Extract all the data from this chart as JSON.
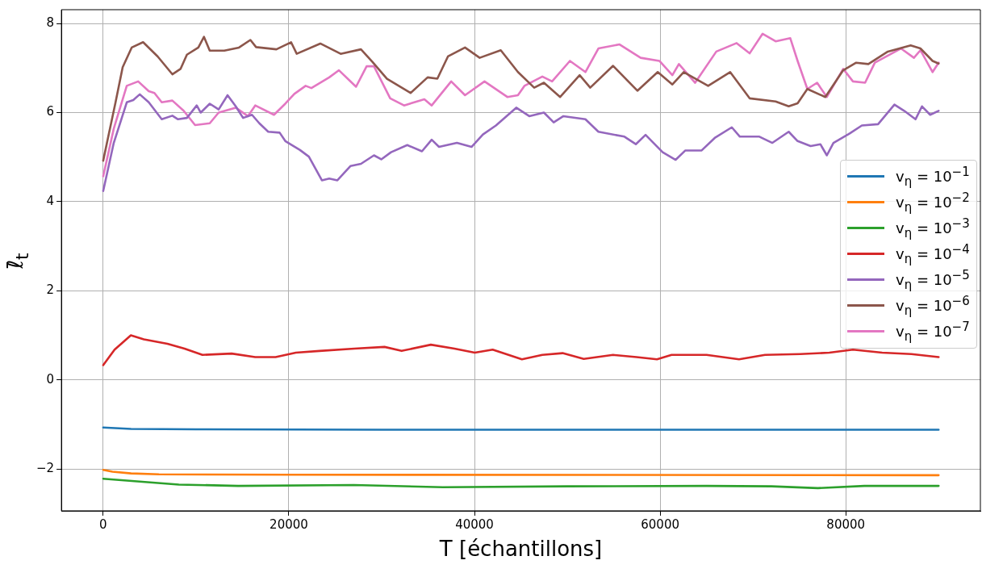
{
  "chart_data": {
    "type": "line",
    "xlabel": "T [échantillons]",
    "ylabel": "ℓ̄$_{t}$",
    "xlim": [
      -4500,
      94500
    ],
    "ylim": [
      -2.94,
      8.31
    ],
    "xticks": [
      0,
      20000,
      40000,
      60000,
      80000
    ],
    "yticks": [
      {
        "value": -2,
        "label": "−2"
      },
      0,
      2,
      4,
      6,
      8
    ],
    "grid": true,
    "legend": "right",
    "marker": "none",
    "line_style": "solid",
    "series": [
      {
        "name": "v$_{η}$ = 10$^{−1}$",
        "color": "#1f77b4",
        "x": [
          0,
          3000,
          10000,
          30000,
          60000,
          90000
        ],
        "values": [
          -1.07,
          -1.1,
          -1.11,
          -1.12,
          -1.12,
          -1.12
        ]
      },
      {
        "name": "v$_{η}$ = 10$^{−2}$",
        "color": "#ff7f0e",
        "x": [
          0,
          1000,
          3000,
          6000,
          20000,
          90000
        ],
        "values": [
          -2.02,
          -2.06,
          -2.1,
          -2.12,
          -2.13,
          -2.14
        ]
      },
      {
        "name": "v$_{η}$ = 10$^{−3}$",
        "color": "#2ca02c",
        "x": [
          0,
          8150,
          14540,
          27000,
          36600,
          50000,
          65000,
          72000,
          77000,
          82000,
          90000
        ],
        "values": [
          -2.22,
          -2.35,
          -2.38,
          -2.36,
          -2.41,
          -2.39,
          -2.38,
          -2.39,
          -2.43,
          -2.38,
          -2.38
        ]
      },
      {
        "name": "v$_{η}$ = 10$^{−4}$",
        "color": "#d62728",
        "x": [
          0,
          1230,
          2980,
          4380,
          6920,
          8760,
          10690,
          13840,
          16380,
          18570,
          20760,
          23300,
          27070,
          30310,
          32150,
          35300,
          37840,
          40030,
          41960,
          45110,
          47310,
          49490,
          51770,
          54930,
          57460,
          59660,
          61230,
          65000,
          68500,
          71300,
          75080,
          78230,
          80770,
          83920,
          87070,
          90000
        ],
        "values": [
          0.33,
          0.68,
          1.0,
          0.91,
          0.81,
          0.7,
          0.56,
          0.59,
          0.51,
          0.51,
          0.61,
          0.65,
          0.7,
          0.74,
          0.65,
          0.79,
          0.7,
          0.61,
          0.68,
          0.46,
          0.56,
          0.6,
          0.47,
          0.56,
          0.51,
          0.46,
          0.56,
          0.56,
          0.46,
          0.56,
          0.58,
          0.61,
          0.68,
          0.61,
          0.58,
          0.51
        ]
      },
      {
        "name": "v$_{η}$ = 10$^{−5}$",
        "color": "#9467bd",
        "x": [
          0,
          1140,
          2540,
          3240,
          3940,
          4910,
          6310,
          7450,
          8060,
          9020,
          10080,
          10510,
          11480,
          12440,
          13400,
          14280,
          15070,
          16030,
          16820,
          17780,
          19010,
          19620,
          21200,
          22160,
          23560,
          24350,
          25230,
          26630,
          27770,
          29170,
          29960,
          31010,
          32760,
          34340,
          35390,
          36180,
          38110,
          39680,
          40910,
          42310,
          44500,
          45900,
          47480,
          48530,
          49580,
          51950,
          53350,
          56150,
          57380,
          58430,
          60270,
          61670,
          62720,
          64470,
          65880,
          67720,
          68590,
          70690,
          72090,
          73850,
          74810,
          76210,
          77260,
          77960,
          78670,
          80420,
          81730,
          83480,
          85240,
          86290,
          87510,
          88210,
          89090,
          90000
        ],
        "values": [
          4.24,
          5.32,
          6.23,
          6.28,
          6.41,
          6.23,
          5.85,
          5.93,
          5.85,
          5.88,
          6.16,
          6.0,
          6.2,
          6.07,
          6.39,
          6.14,
          5.88,
          5.95,
          5.76,
          5.57,
          5.55,
          5.36,
          5.16,
          5.01,
          4.48,
          4.52,
          4.48,
          4.8,
          4.85,
          5.04,
          4.95,
          5.11,
          5.27,
          5.13,
          5.39,
          5.23,
          5.32,
          5.23,
          5.51,
          5.71,
          6.11,
          5.92,
          6.0,
          5.78,
          5.92,
          5.85,
          5.57,
          5.46,
          5.29,
          5.5,
          5.11,
          4.94,
          5.15,
          5.15,
          5.43,
          5.67,
          5.46,
          5.46,
          5.32,
          5.57,
          5.36,
          5.25,
          5.29,
          5.04,
          5.32,
          5.53,
          5.71,
          5.74,
          6.18,
          6.04,
          5.85,
          6.14,
          5.95,
          6.04
        ]
      },
      {
        "name": "v$_{η}$ = 10$^{−6}$",
        "color": "#8c564b",
        "x": [
          0,
          525,
          1300,
          2100,
          3070,
          4300,
          5870,
          7450,
          8330,
          9020,
          10250,
          10860,
          11480,
          13050,
          14630,
          15860,
          16470,
          18660,
          20240,
          20850,
          23390,
          25580,
          27770,
          29000,
          30570,
          33110,
          34950,
          36000,
          37140,
          38980,
          40560,
          42830,
          44680,
          46430,
          47480,
          49230,
          51330,
          52470,
          54930,
          57550,
          59740,
          61320,
          62540,
          65170,
          67540,
          69640,
          72440,
          73850,
          74810,
          75860,
          77790,
          79720,
          81120,
          82430,
          84530,
          86990,
          88040,
          89350,
          90000
        ],
        "values": [
          4.92,
          5.44,
          6.2,
          7.02,
          7.46,
          7.58,
          7.26,
          6.86,
          6.98,
          7.3,
          7.46,
          7.7,
          7.39,
          7.39,
          7.46,
          7.63,
          7.47,
          7.42,
          7.58,
          7.32,
          7.55,
          7.32,
          7.42,
          7.14,
          6.76,
          6.44,
          6.79,
          6.76,
          7.26,
          7.46,
          7.23,
          7.4,
          6.91,
          6.56,
          6.67,
          6.35,
          6.84,
          6.56,
          7.05,
          6.49,
          6.91,
          6.63,
          6.91,
          6.6,
          6.91,
          6.32,
          6.25,
          6.14,
          6.21,
          6.53,
          6.35,
          6.95,
          7.12,
          7.09,
          7.37,
          7.51,
          7.44,
          7.16,
          7.1
        ]
      },
      {
        "name": "v$_{η}$ = 10$^{−7}$",
        "color": "#e377c2",
        "x": [
          0,
          1140,
          2540,
          3770,
          4910,
          5520,
          6310,
          7450,
          8670,
          9900,
          11480,
          12440,
          14280,
          15590,
          16380,
          18400,
          19620,
          20590,
          21810,
          22430,
          24350,
          25400,
          27240,
          28380,
          29170,
          30920,
          32410,
          34600,
          35390,
          37490,
          38980,
          41080,
          43540,
          44680,
          45380,
          47310,
          48360,
          50280,
          51950,
          53350,
          55630,
          57900,
          59920,
          61320,
          62020,
          63770,
          66050,
          68240,
          69640,
          71040,
          72440,
          74020,
          74810,
          75860,
          76910,
          77960,
          79720,
          80770,
          82080,
          83130,
          85940,
          87340,
          88040,
          89350,
          90000
        ],
        "values": [
          4.57,
          5.64,
          6.6,
          6.7,
          6.48,
          6.44,
          6.23,
          6.27,
          6.04,
          5.72,
          5.76,
          6.0,
          6.11,
          5.92,
          6.16,
          5.95,
          6.2,
          6.42,
          6.6,
          6.55,
          6.79,
          6.95,
          6.58,
          7.04,
          7.04,
          6.32,
          6.16,
          6.3,
          6.16,
          6.7,
          6.39,
          6.7,
          6.35,
          6.39,
          6.6,
          6.81,
          6.7,
          7.16,
          6.91,
          7.44,
          7.53,
          7.23,
          7.16,
          6.84,
          7.09,
          6.67,
          7.37,
          7.56,
          7.33,
          7.77,
          7.6,
          7.67,
          7.16,
          6.53,
          6.67,
          6.35,
          6.98,
          6.7,
          6.67,
          7.12,
          7.44,
          7.23,
          7.4,
          6.91,
          7.12
        ]
      }
    ]
  }
}
